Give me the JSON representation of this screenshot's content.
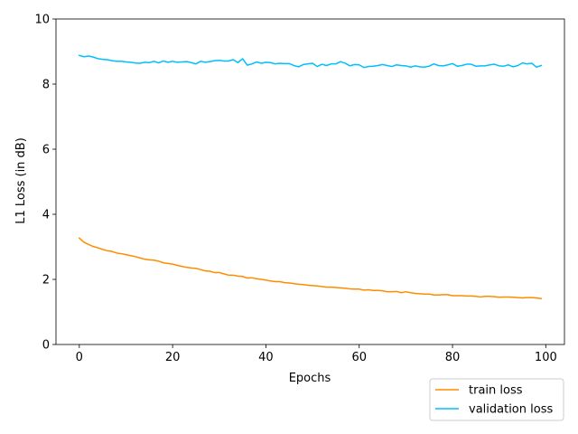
{
  "chart_data": {
    "type": "line",
    "title": "",
    "xlabel": "Epochs",
    "ylabel": "L1 Loss (in dB)",
    "xlim": [
      -5,
      104
    ],
    "ylim": [
      0,
      10
    ],
    "xticks": [
      0,
      20,
      40,
      60,
      80,
      100
    ],
    "yticks": [
      0,
      2,
      4,
      6,
      8,
      10
    ],
    "grid": false,
    "legend_position": "bottom-right, outside the axes",
    "series": [
      {
        "name": "train loss",
        "color": "#ff8c00",
        "x": [
          0,
          1,
          2,
          3,
          4,
          5,
          6,
          7,
          8,
          9,
          10,
          11,
          12,
          13,
          14,
          15,
          16,
          17,
          18,
          19,
          20,
          21,
          22,
          23,
          24,
          25,
          26,
          27,
          28,
          29,
          30,
          31,
          32,
          33,
          34,
          35,
          36,
          37,
          38,
          39,
          40,
          41,
          42,
          43,
          44,
          45,
          46,
          47,
          48,
          49,
          50,
          51,
          52,
          53,
          54,
          55,
          56,
          57,
          58,
          59,
          60,
          61,
          62,
          63,
          64,
          65,
          66,
          67,
          68,
          69,
          70,
          71,
          72,
          73,
          74,
          75,
          76,
          77,
          78,
          79,
          80,
          81,
          82,
          83,
          84,
          85,
          86,
          87,
          88,
          89,
          90,
          91,
          92,
          93,
          94,
          95,
          96,
          97,
          98,
          99
        ],
        "values": [
          3.27,
          3.14,
          3.07,
          3.01,
          2.97,
          2.92,
          2.88,
          2.86,
          2.81,
          2.79,
          2.76,
          2.73,
          2.7,
          2.66,
          2.62,
          2.6,
          2.59,
          2.56,
          2.51,
          2.49,
          2.47,
          2.43,
          2.4,
          2.37,
          2.35,
          2.34,
          2.3,
          2.26,
          2.25,
          2.21,
          2.21,
          2.17,
          2.13,
          2.13,
          2.1,
          2.09,
          2.04,
          2.05,
          2.02,
          2.0,
          1.98,
          1.95,
          1.93,
          1.93,
          1.9,
          1.89,
          1.87,
          1.85,
          1.84,
          1.82,
          1.81,
          1.8,
          1.78,
          1.76,
          1.76,
          1.75,
          1.74,
          1.73,
          1.71,
          1.7,
          1.7,
          1.67,
          1.68,
          1.66,
          1.66,
          1.65,
          1.62,
          1.62,
          1.63,
          1.59,
          1.62,
          1.59,
          1.57,
          1.56,
          1.55,
          1.55,
          1.52,
          1.52,
          1.53,
          1.53,
          1.5,
          1.5,
          1.5,
          1.49,
          1.49,
          1.48,
          1.46,
          1.48,
          1.48,
          1.47,
          1.45,
          1.46,
          1.46,
          1.45,
          1.44,
          1.43,
          1.44,
          1.44,
          1.43,
          1.41
        ]
      },
      {
        "name": "validation loss",
        "color": "#00bfff",
        "x": [
          0,
          1,
          2,
          3,
          4,
          5,
          6,
          7,
          8,
          9,
          10,
          11,
          12,
          13,
          14,
          15,
          16,
          17,
          18,
          19,
          20,
          21,
          22,
          23,
          24,
          25,
          26,
          27,
          28,
          29,
          30,
          31,
          32,
          33,
          34,
          35,
          36,
          37,
          38,
          39,
          40,
          41,
          42,
          43,
          44,
          45,
          46,
          47,
          48,
          49,
          50,
          51,
          52,
          53,
          54,
          55,
          56,
          57,
          58,
          59,
          60,
          61,
          62,
          63,
          64,
          65,
          66,
          67,
          68,
          69,
          70,
          71,
          72,
          73,
          74,
          75,
          76,
          77,
          78,
          79,
          80,
          81,
          82,
          83,
          84,
          85,
          86,
          87,
          88,
          89,
          90,
          91,
          92,
          93,
          94,
          95,
          96,
          97,
          98,
          99
        ],
        "values": [
          8.88,
          8.84,
          8.86,
          8.83,
          8.78,
          8.76,
          8.75,
          8.72,
          8.7,
          8.7,
          8.68,
          8.67,
          8.65,
          8.64,
          8.67,
          8.66,
          8.7,
          8.65,
          8.71,
          8.67,
          8.7,
          8.67,
          8.68,
          8.69,
          8.66,
          8.62,
          8.7,
          8.67,
          8.69,
          8.72,
          8.73,
          8.71,
          8.71,
          8.75,
          8.66,
          8.78,
          8.58,
          8.62,
          8.68,
          8.64,
          8.67,
          8.66,
          8.62,
          8.64,
          8.63,
          8.63,
          8.57,
          8.53,
          8.6,
          8.62,
          8.64,
          8.54,
          8.61,
          8.57,
          8.62,
          8.62,
          8.69,
          8.64,
          8.56,
          8.6,
          8.59,
          8.51,
          8.54,
          8.55,
          8.57,
          8.6,
          8.57,
          8.54,
          8.59,
          8.57,
          8.56,
          8.52,
          8.56,
          8.53,
          8.52,
          8.55,
          8.62,
          8.57,
          8.56,
          8.59,
          8.63,
          8.55,
          8.57,
          8.61,
          8.61,
          8.55,
          8.56,
          8.56,
          8.59,
          8.61,
          8.56,
          8.55,
          8.59,
          8.53,
          8.57,
          8.65,
          8.62,
          8.64,
          8.52,
          8.57
        ]
      }
    ]
  }
}
